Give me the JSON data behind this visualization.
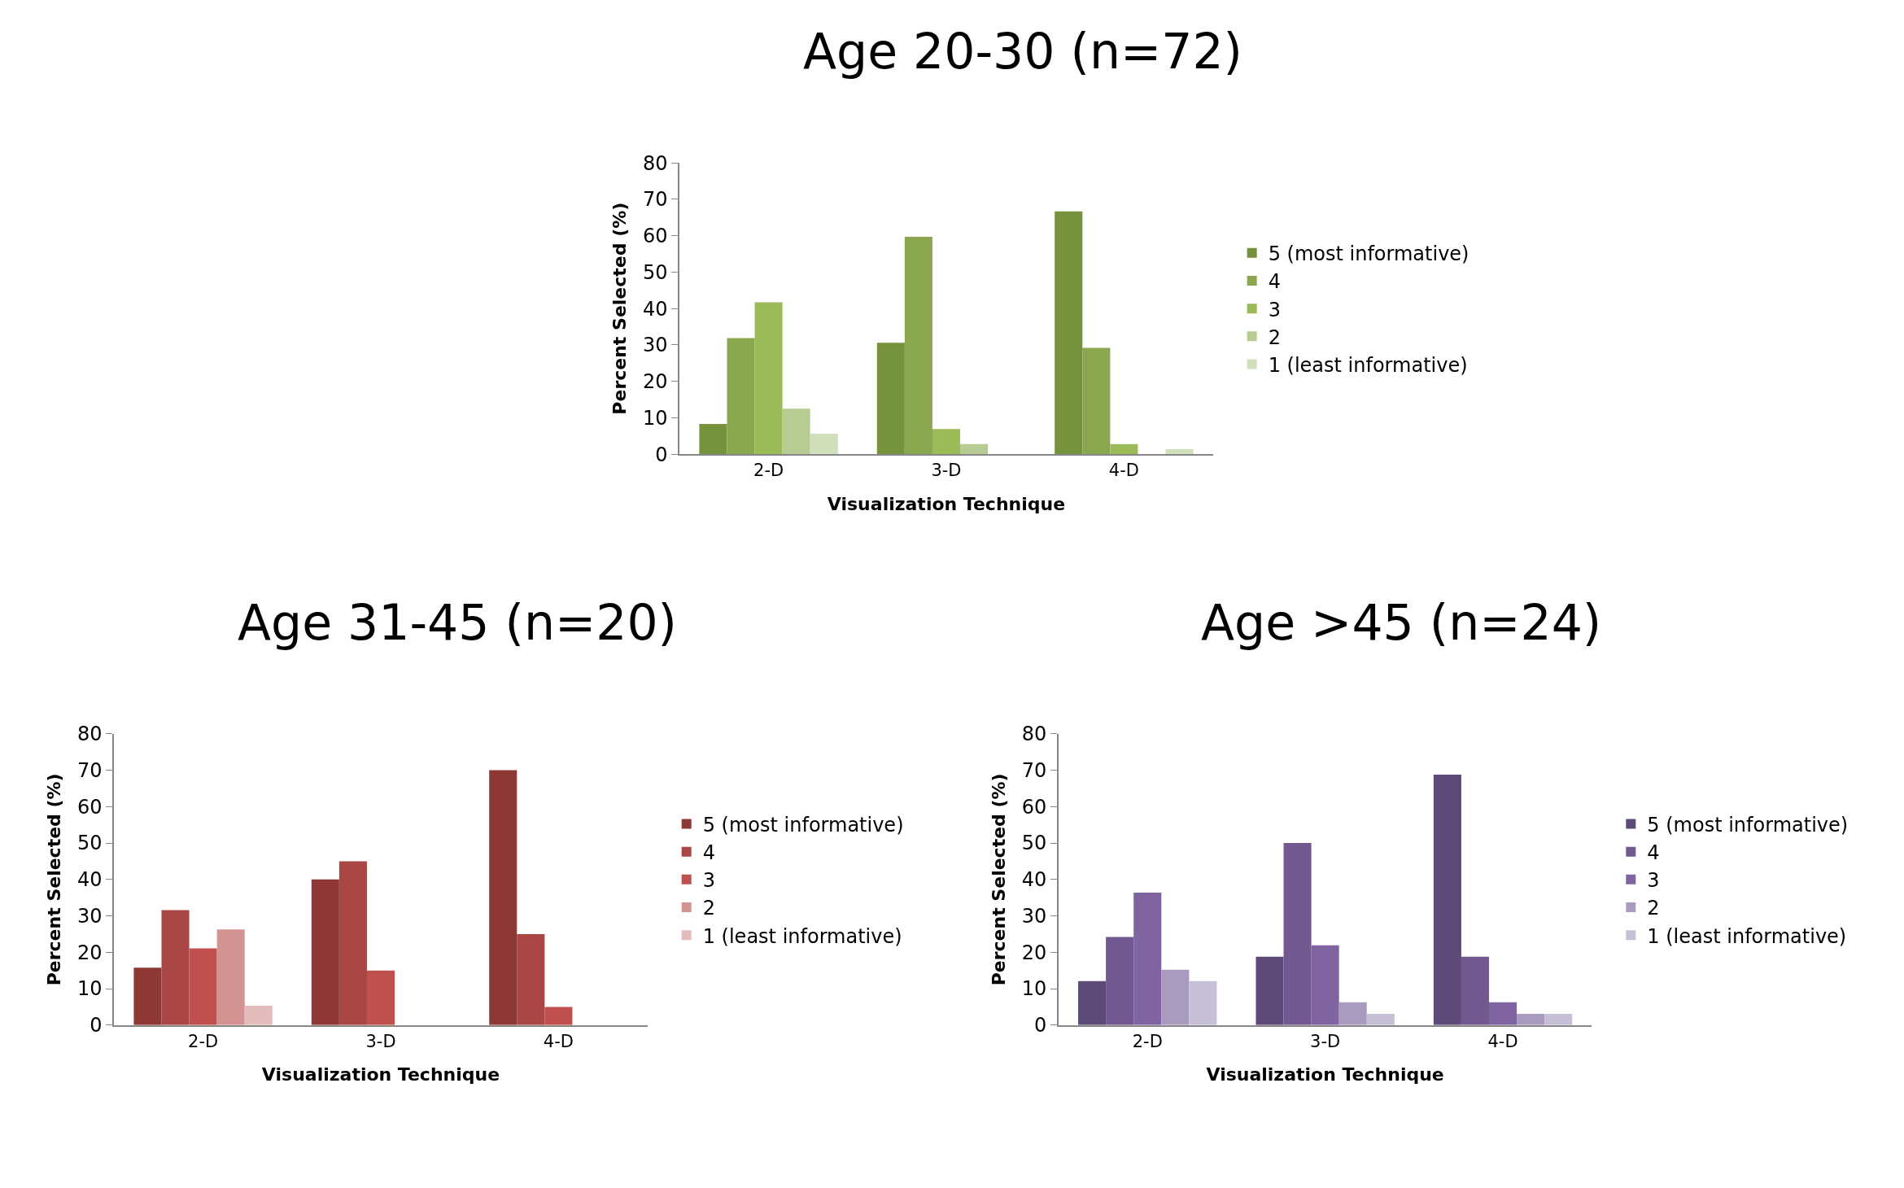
{
  "chart_data": [
    {
      "type": "bar",
      "title": "Age 20-30 (n=72)",
      "xlabel": "Visualization Technique",
      "ylabel": "Percent Selected (%)",
      "categories": [
        "2-D",
        "3-D",
        "4-D"
      ],
      "ylim": [
        0,
        80
      ],
      "yticks": [
        0,
        10,
        20,
        30,
        40,
        50,
        60,
        70,
        80
      ],
      "legend": "right",
      "series": [
        {
          "name": "5 (most informative)",
          "color": "#76923c",
          "values": [
            8.3,
            30.6,
            66.7
          ]
        },
        {
          "name": "4",
          "color": "#8aa64f",
          "values": [
            31.9,
            59.7,
            29.2
          ]
        },
        {
          "name": "3",
          "color": "#9bbb59",
          "values": [
            41.7,
            6.9,
            2.8
          ]
        },
        {
          "name": "2",
          "color": "#b7cc92",
          "values": [
            12.5,
            2.8,
            0
          ]
        },
        {
          "name": "1 (least informative)",
          "color": "#d1dfbb",
          "values": [
            5.6,
            0,
            1.4
          ]
        }
      ]
    },
    {
      "type": "bar",
      "title": "Age 31-45 (n=20)",
      "xlabel": "Visualization Technique",
      "ylabel": "Percent Selected (%)",
      "categories": [
        "2-D",
        "3-D",
        "4-D"
      ],
      "ylim": [
        0,
        80
      ],
      "yticks": [
        0,
        10,
        20,
        30,
        40,
        50,
        60,
        70,
        80
      ],
      "legend": "right",
      "series": [
        {
          "name": "5 (most informative)",
          "color": "#8e3836",
          "values": [
            15.8,
            40,
            70
          ]
        },
        {
          "name": "4",
          "color": "#aa4643",
          "values": [
            31.6,
            45,
            25
          ]
        },
        {
          "name": "3",
          "color": "#c0504d",
          "values": [
            21.1,
            15,
            5
          ]
        },
        {
          "name": "2",
          "color": "#d39390",
          "values": [
            26.3,
            0,
            0
          ]
        },
        {
          "name": "1 (least informative)",
          "color": "#e4bcbb",
          "values": [
            5.3,
            0,
            0
          ]
        }
      ]
    },
    {
      "type": "bar",
      "title": "Age >45 (n=24)",
      "xlabel": "Visualization Technique",
      "ylabel": "Percent Selected (%)",
      "categories": [
        "2-D",
        "3-D",
        "4-D"
      ],
      "ylim": [
        0,
        80
      ],
      "yticks": [
        0,
        10,
        20,
        30,
        40,
        50,
        60,
        70,
        80
      ],
      "legend": "right",
      "series": [
        {
          "name": "5 (most informative)",
          "color": "#5e4a78",
          "values": [
            12.1,
            18.8,
            68.8
          ]
        },
        {
          "name": "4",
          "color": "#71588f",
          "values": [
            24.2,
            50,
            18.8
          ]
        },
        {
          "name": "3",
          "color": "#8064a2",
          "values": [
            36.4,
            21.9,
            6.3
          ]
        },
        {
          "name": "2",
          "color": "#a99bbd",
          "values": [
            15.2,
            6.3,
            3.1
          ]
        },
        {
          "name": "1 (least informative)",
          "color": "#c7bfd6",
          "values": [
            12.1,
            3.1,
            3.1
          ]
        }
      ]
    }
  ]
}
